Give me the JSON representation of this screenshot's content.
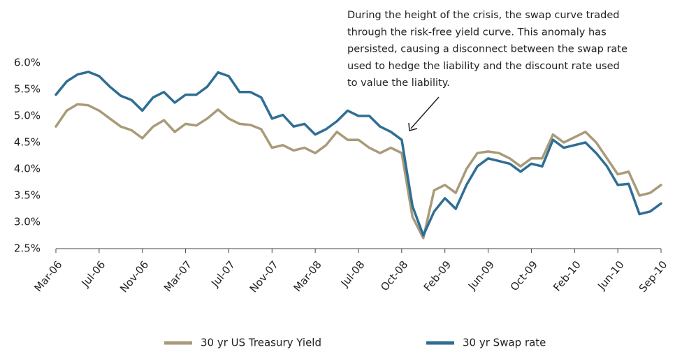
{
  "chart_data": {
    "type": "line",
    "annotation": [
      "During the height of the crisis, the swap curve traded",
      "through the risk-free yield curve. This anomaly has",
      "persisted, causing a disconnect between the swap rate",
      "used to hedge the liability and the discount rate used",
      "to value the liability."
    ],
    "categories": [
      "Mar-06",
      null,
      null,
      null,
      "Jul-06",
      null,
      null,
      null,
      "Nov-06",
      null,
      null,
      null,
      "Mar-07",
      null,
      null,
      null,
      "Jul-07",
      null,
      null,
      null,
      "Nov-07",
      null,
      null,
      null,
      "Mar-08",
      null,
      null,
      null,
      "Jul-08",
      null,
      null,
      null,
      "Oct-08",
      null,
      null,
      null,
      "Feb-09",
      null,
      null,
      null,
      "Jun-09",
      null,
      null,
      null,
      "Oct-09",
      null,
      null,
      null,
      "Feb-10",
      null,
      null,
      null,
      "Jun-10",
      null,
      null,
      null,
      "Sep-10"
    ],
    "series": [
      {
        "name": "30 yr US Treasury Yield",
        "color": "#a99b79",
        "values": [
          4.8,
          5.1,
          5.22,
          5.2,
          5.1,
          4.95,
          4.8,
          4.73,
          4.58,
          4.8,
          4.92,
          4.7,
          4.85,
          4.82,
          4.95,
          5.12,
          4.95,
          4.85,
          4.83,
          4.75,
          4.4,
          4.45,
          4.35,
          4.4,
          4.3,
          4.45,
          4.7,
          4.55,
          4.55,
          4.4,
          4.3,
          4.4,
          4.3,
          3.1,
          2.7,
          3.6,
          3.7,
          3.55,
          4.0,
          4.3,
          4.33,
          4.3,
          4.2,
          4.05,
          4.2,
          4.2,
          4.65,
          4.5,
          4.6,
          4.7,
          4.5,
          4.2,
          3.9,
          3.95,
          3.5,
          3.55,
          3.7
        ]
      },
      {
        "name": "30 yr Swap rate",
        "color": "#2f6e94",
        "values": [
          5.4,
          5.65,
          5.78,
          5.83,
          5.75,
          5.55,
          5.38,
          5.3,
          5.1,
          5.35,
          5.45,
          5.25,
          5.4,
          5.4,
          5.55,
          5.82,
          5.75,
          5.45,
          5.45,
          5.35,
          4.95,
          5.02,
          4.8,
          4.85,
          4.65,
          4.75,
          4.9,
          5.1,
          5.0,
          5.0,
          4.8,
          4.7,
          4.55,
          3.3,
          2.75,
          3.2,
          3.45,
          3.25,
          3.7,
          4.05,
          4.2,
          4.15,
          4.1,
          3.95,
          4.1,
          4.05,
          4.55,
          4.4,
          4.45,
          4.5,
          4.3,
          4.05,
          3.7,
          3.72,
          3.15,
          3.2,
          3.35
        ]
      }
    ],
    "ylim": [
      2.5,
      6.0
    ],
    "yticks": [
      {
        "value": 2.5,
        "label": "2.5%"
      },
      {
        "value": 3.0,
        "label": "3.0%"
      },
      {
        "value": 3.5,
        "label": "3.5%"
      },
      {
        "value": 4.0,
        "label": "4.0%"
      },
      {
        "value": 4.5,
        "label": "4.5%"
      },
      {
        "value": 5.0,
        "label": "5.0%"
      },
      {
        "value": 5.5,
        "label": "5.5%"
      },
      {
        "value": 6.0,
        "label": "6.0%"
      }
    ],
    "grid": false
  }
}
